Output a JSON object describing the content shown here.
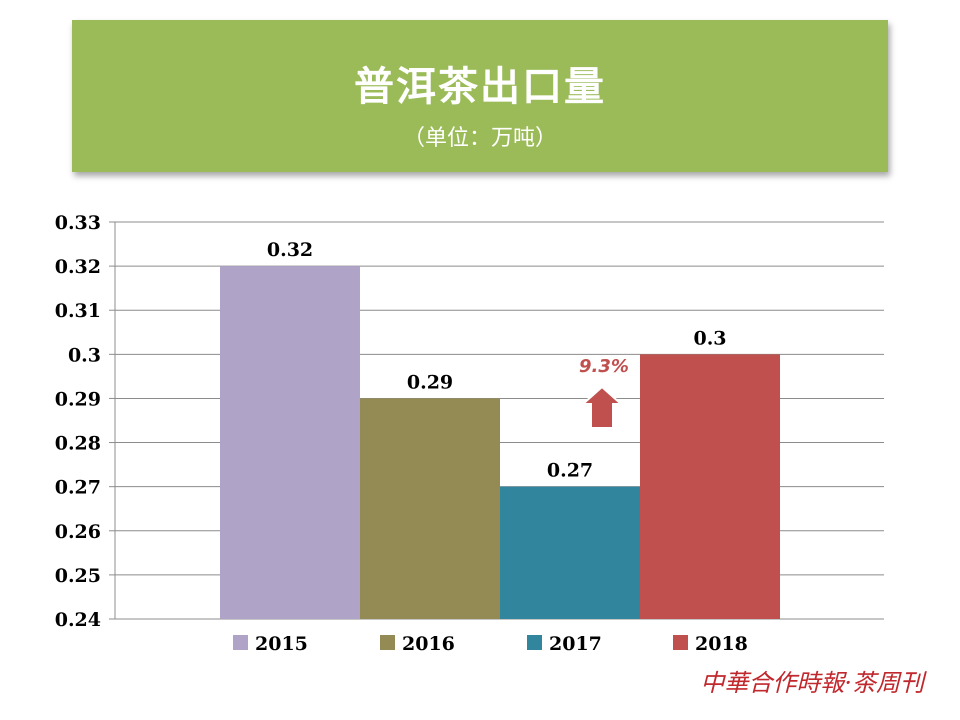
{
  "header": {
    "title": "普洱茶出口量",
    "subtitle": "（单位：万吨）"
  },
  "chart_data": {
    "type": "bar",
    "title": "普洱茶出口量",
    "subtitle": "（单位：万吨）",
    "categories": [
      "2015",
      "2016",
      "2017",
      "2018"
    ],
    "values": [
      0.32,
      0.29,
      0.27,
      0.3
    ],
    "data_labels": [
      "0.32",
      "0.29",
      "0.27",
      "0.3"
    ],
    "colors": [
      "#b0a3c8",
      "#948a54",
      "#31859c",
      "#c0504d"
    ],
    "ylim": [
      0.24,
      0.33
    ],
    "yticks": [
      "0.24",
      "0.25",
      "0.26",
      "0.27",
      "0.28",
      "0.29",
      "0.3",
      "0.31",
      "0.32",
      "0.33"
    ],
    "grid": true,
    "legend": "bottom",
    "annotation": {
      "text": "9.3%",
      "direction": "up",
      "color": "#c0504d"
    }
  },
  "brand": {
    "text": "中華合作時報·茶周刊"
  }
}
